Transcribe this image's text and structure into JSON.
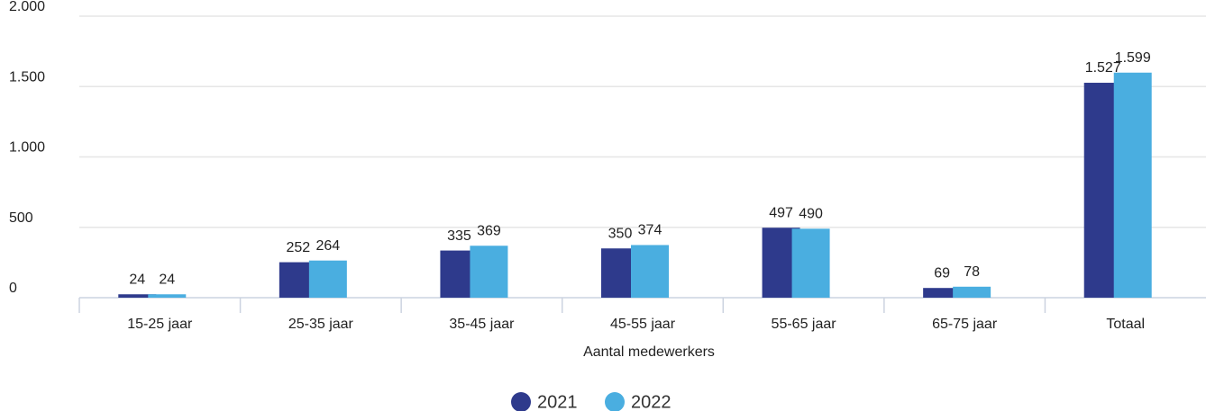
{
  "chart_data": {
    "type": "bar",
    "x_label": "Aantal medewerkers",
    "categories": [
      "15-25 jaar",
      "25-35 jaar",
      "35-45 jaar",
      "45-55 jaar",
      "55-65 jaar",
      "65-75 jaar",
      "Totaal"
    ],
    "series": [
      {
        "name": "2021",
        "color": "#2e3a8c",
        "values": [
          24,
          252,
          335,
          350,
          497,
          69,
          1527
        ],
        "value_labels": [
          "24",
          "252",
          "335",
          "350",
          "497",
          "69",
          "1.527"
        ]
      },
      {
        "name": "2022",
        "color": "#4aaee0",
        "values": [
          24,
          264,
          369,
          374,
          490,
          78,
          1599
        ],
        "value_labels": [
          "24",
          "264",
          "369",
          "374",
          "490",
          "78",
          "1.599"
        ]
      }
    ],
    "ylim": [
      0,
      2000
    ],
    "yticks": [
      0,
      500,
      {
        "value": 1000,
        "label": "1.000"
      },
      {
        "value": 1500,
        "label": "1.500"
      },
      {
        "value": 2000,
        "label": "2.000"
      }
    ],
    "grid": true,
    "legend": "bottom"
  }
}
